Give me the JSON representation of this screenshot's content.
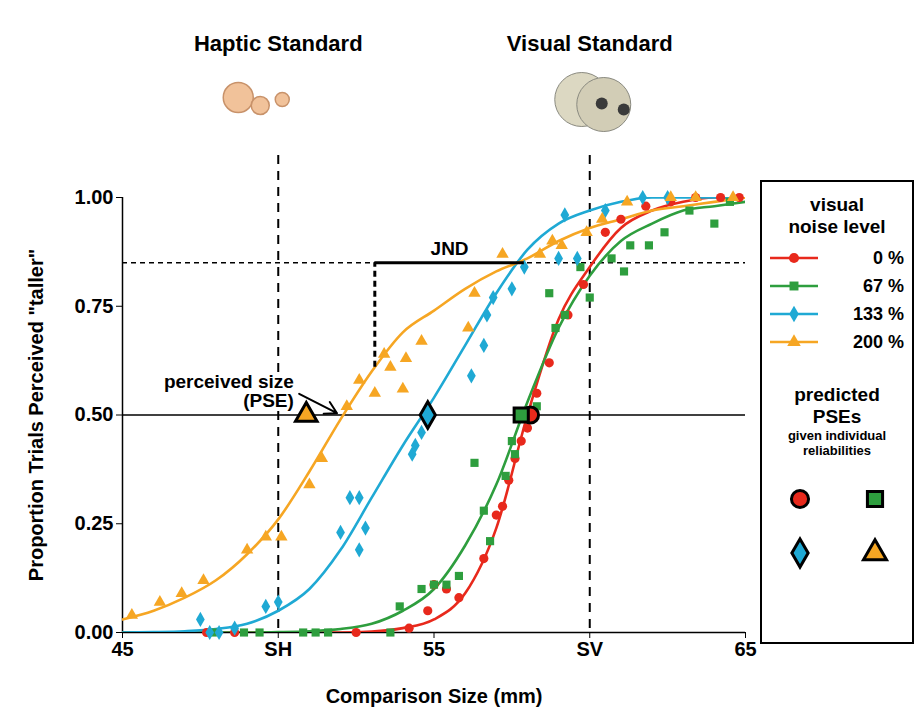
{
  "chart_data": {
    "type": "scatter",
    "x_label": "Comparison Size (mm)",
    "y_label": "Proportion Trials Perceived \"taller\"",
    "xlim": [
      45,
      65
    ],
    "xticks": [
      45,
      {
        "value": 50,
        "label": "SH"
      },
      55,
      {
        "value": 60,
        "label": "SV"
      },
      65
    ],
    "ylim": [
      0,
      1
    ],
    "yticks": [
      {
        "value": 0,
        "label": "0.00"
      },
      {
        "value": 0.25,
        "label": "0.25"
      },
      {
        "value": 0.5,
        "label": "0.50"
      },
      {
        "value": 0.75,
        "label": "0.75"
      },
      {
        "value": 1,
        "label": "1.00"
      }
    ],
    "grid": false,
    "legend": "right",
    "legend_title": "visual noise level",
    "predicted_title": "predicted PSEs",
    "predicted_subtitle": "given individual reliabilities",
    "standards": [
      {
        "label": "Haptic Standard",
        "x": 50
      },
      {
        "label": "Visual Standard",
        "x": 60
      }
    ],
    "reference_lines": [
      {
        "y": 0.85,
        "line_style": "dashed"
      },
      {
        "y": 0.5,
        "line_style": "solid"
      }
    ],
    "jnd": {
      "label": "JND",
      "x": [
        53.1,
        57.9
      ],
      "y": 0.85,
      "y_end": 0.61
    },
    "annotation": {
      "text": "perceived size\n(PSE)",
      "x": 50.5,
      "y": 0.555,
      "arrow_to": [
        52.0,
        0.5
      ]
    },
    "series": [
      {
        "name": "0 %",
        "color": "#e8291c",
        "marker": "circle",
        "x": [
          47.7,
          48.6,
          52.5,
          54.2,
          54.8,
          55.0,
          55.4,
          55.8,
          56.6,
          57.0,
          57.2,
          57.4,
          57.6,
          57.8,
          58.0,
          58.3,
          58.7,
          59.3,
          59.8,
          60.5,
          61.0,
          61.8,
          62.6,
          63.4,
          64.2,
          64.8
        ],
        "values": [
          0,
          0,
          0,
          0.01,
          0.05,
          0.11,
          0.1,
          0.08,
          0.17,
          0.27,
          0.29,
          0.35,
          0.4,
          0.44,
          0.47,
          0.55,
          0.62,
          0.73,
          0.8,
          0.92,
          0.95,
          0.98,
          0.99,
          1.0,
          1.0,
          1.0
        ],
        "fit_x": [
          45,
          46,
          47,
          48,
          49,
          50,
          51,
          52,
          53,
          54,
          55,
          56,
          57,
          58,
          59,
          60,
          61,
          62,
          63,
          64,
          65
        ],
        "fit_values": [
          0,
          0,
          0,
          0,
          0,
          0,
          0,
          0,
          0.002,
          0.01,
          0.03,
          0.09,
          0.24,
          0.5,
          0.72,
          0.84,
          0.93,
          0.97,
          0.99,
          1.0,
          1.0
        ],
        "predicted_pse": {
          "x": 58.1,
          "y": 0.5
        }
      },
      {
        "name": "67 %",
        "color": "#2e9e3e",
        "marker": "square",
        "x": [
          47.9,
          48.9,
          49.4,
          50.8,
          51.2,
          51.6,
          53.6,
          53.9,
          54.6,
          55.0,
          55.4,
          55.8,
          56.3,
          56.6,
          56.8,
          57.3,
          57.5,
          57.6,
          58.0,
          58.3,
          58.7,
          58.9,
          59.2,
          59.7,
          60.0,
          60.7,
          61.1,
          61.3,
          61.9,
          62.4,
          63.2,
          64.0,
          64.5
        ],
        "values": [
          0,
          0,
          0,
          0,
          0,
          0,
          0,
          0.06,
          0.1,
          0.11,
          0.11,
          0.13,
          0.39,
          0.28,
          0.21,
          0.36,
          0.44,
          0.41,
          0.5,
          0.52,
          0.78,
          0.7,
          0.73,
          0.84,
          0.77,
          0.86,
          0.83,
          0.89,
          0.89,
          0.92,
          0.97,
          0.94,
          0.99
        ],
        "fit_x": [
          45,
          46,
          47,
          48,
          49,
          50,
          51,
          52,
          53,
          54,
          55,
          56,
          57,
          58,
          59,
          60,
          61,
          62,
          63,
          64,
          65
        ],
        "fit_values": [
          0,
          0,
          0,
          0,
          0,
          0.001,
          0.003,
          0.008,
          0.02,
          0.05,
          0.1,
          0.2,
          0.34,
          0.53,
          0.7,
          0.82,
          0.9,
          0.94,
          0.97,
          0.98,
          0.99
        ],
        "predicted_pse": {
          "x": 57.8,
          "y": 0.5
        }
      },
      {
        "name": "133 %",
        "color": "#1fa9d4",
        "marker": "diamond",
        "x": [
          47.5,
          47.8,
          48.1,
          48.6,
          49.6,
          50.0,
          52.0,
          52.3,
          52.6,
          52.6,
          52.8,
          54.3,
          54.4,
          54.6,
          56.2,
          56.6,
          56.7,
          56.9,
          57.5,
          57.9,
          59.0,
          59.2,
          59.6,
          60.5,
          61.7,
          62.5
        ],
        "values": [
          0.03,
          0,
          0,
          0.01,
          0.06,
          0.07,
          0.23,
          0.31,
          0.31,
          0.19,
          0.24,
          0.41,
          0.43,
          0.46,
          0.59,
          0.66,
          0.73,
          0.77,
          0.79,
          0.84,
          0.86,
          0.96,
          0.86,
          0.97,
          1.0,
          1.0
        ],
        "fit_x": [
          45,
          46,
          47,
          48,
          49,
          50,
          51,
          52,
          53,
          54,
          55,
          56,
          57,
          58,
          59,
          60,
          61,
          62,
          63,
          64,
          65
        ],
        "fit_values": [
          0,
          0.001,
          0.003,
          0.008,
          0.02,
          0.05,
          0.1,
          0.19,
          0.31,
          0.43,
          0.54,
          0.66,
          0.78,
          0.88,
          0.94,
          0.97,
          0.99,
          1.0,
          1.0,
          1.0,
          1.0
        ],
        "predicted_pse": {
          "x": 54.8,
          "y": 0.5
        }
      },
      {
        "name": "200 %",
        "color": "#f6a623",
        "marker": "triangle",
        "x": [
          45.3,
          46.2,
          46.9,
          47.6,
          49.0,
          49.6,
          50.1,
          51.0,
          51.4,
          52.2,
          52.6,
          53.1,
          53.4,
          53.6,
          54.0,
          54.1,
          54.6,
          56.1,
          56.3,
          57.2,
          58.4,
          58.8,
          59.1,
          59.9,
          60.4,
          61.2,
          62.6,
          63.4,
          64.6
        ],
        "values": [
          0.04,
          0.07,
          0.09,
          0.12,
          0.19,
          0.22,
          0.22,
          0.34,
          0.4,
          0.52,
          0.58,
          0.55,
          0.64,
          0.61,
          0.56,
          0.63,
          0.67,
          0.7,
          0.78,
          0.87,
          0.87,
          0.9,
          0.89,
          0.92,
          0.95,
          0.99,
          1.0,
          1.0,
          1.0
        ],
        "fit_x": [
          45,
          46,
          47,
          48,
          49,
          50,
          51,
          52,
          53,
          54,
          55,
          56,
          57,
          58,
          59,
          60,
          61,
          62,
          63,
          64,
          65
        ],
        "fit_values": [
          0.03,
          0.05,
          0.08,
          0.12,
          0.18,
          0.26,
          0.37,
          0.49,
          0.6,
          0.69,
          0.74,
          0.79,
          0.83,
          0.86,
          0.9,
          0.93,
          0.95,
          0.97,
          0.98,
          0.99,
          1.0
        ],
        "predicted_pse": {
          "x": 50.9,
          "y": 0.5
        }
      }
    ]
  }
}
